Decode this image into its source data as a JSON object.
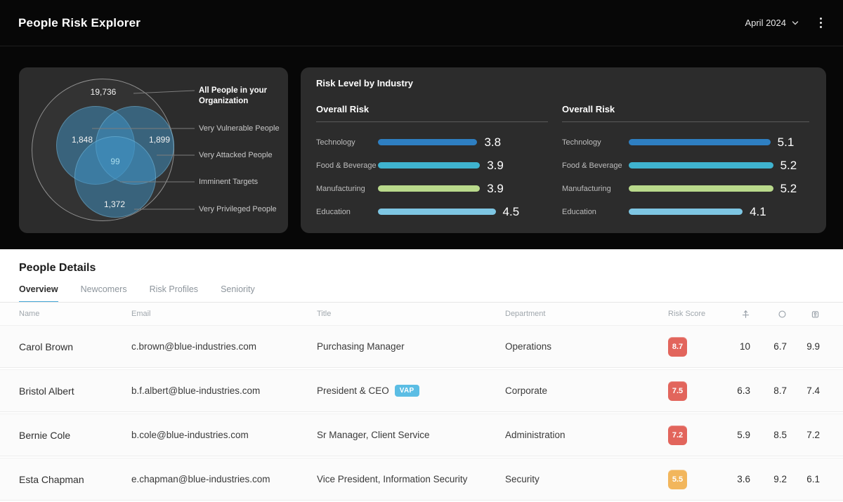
{
  "header": {
    "title": "People Risk Explorer",
    "period": "April 2024",
    "menu_icon": "kebab-menu-icon",
    "period_icon": "chevron-down-icon"
  },
  "venn": {
    "total_value": "19,736",
    "vulnerable_value": "1,848",
    "attacked_value": "1,899",
    "imminent_value": "99",
    "privileged_value": "1,372",
    "labels": {
      "total": "All People in your Organization",
      "vulnerable": "Very Vulnerable People",
      "attacked": "Very Attacked People",
      "imminent": "Imminent Targets",
      "privileged": "Very Privileged People"
    },
    "circle_color": "#4094c5"
  },
  "industry": {
    "title": "Risk Level by Industry",
    "columns": [
      {
        "heading": "Overall Risk",
        "rows": [
          {
            "label": "Technology",
            "value": "3.8",
            "color": "#2e7fc2"
          },
          {
            "label": "Food & Beverage",
            "value": "3.9",
            "color": "#3fb3cf"
          },
          {
            "label": "Manufacturing",
            "value": "3.9",
            "color": "#b9d98b"
          },
          {
            "label": "Education",
            "value": "4.5",
            "color": "#7ec6e3"
          }
        ]
      },
      {
        "heading": "Overall Risk",
        "rows": [
          {
            "label": "Technology",
            "value": "5.1",
            "color": "#2e7fc2"
          },
          {
            "label": "Food & Beverage",
            "value": "5.2",
            "color": "#3fb3cf"
          },
          {
            "label": "Manufacturing",
            "value": "5.2",
            "color": "#b9d98b"
          },
          {
            "label": "Education",
            "value": "4.1",
            "color": "#7ec6e3"
          }
        ]
      }
    ]
  },
  "people": {
    "title": "People Details",
    "tabs": [
      "Overview",
      "Newcomers",
      "Risk Profiles",
      "Seniority"
    ],
    "active_tab": "Overview",
    "table": {
      "headers": {
        "name": "Name",
        "email": "Email",
        "title": "Title",
        "department": "Department",
        "risk_score": "Risk Score",
        "icons": [
          "attack-index-icon",
          "vulnerability-icon",
          "privilege-icon"
        ]
      },
      "rows": [
        {
          "name": "Carol Brown",
          "email": "c.brown@blue-industries.com",
          "title": "Purchasing Manager",
          "tag": "",
          "department": "Operations",
          "score": "8.7",
          "score_color": "#e2655c",
          "attack": "10",
          "vulnerability": "6.7",
          "privilege": "9.9"
        },
        {
          "name": "Bristol Albert",
          "email": "b.f.albert@blue-industries.com",
          "title": "President & CEO",
          "tag": "VAP",
          "department": "Corporate",
          "score": "7.5",
          "score_color": "#e2655c",
          "attack": "6.3",
          "vulnerability": "8.7",
          "privilege": "7.4"
        },
        {
          "name": "Bernie Cole",
          "email": "b.cole@blue-industries.com",
          "title": "Sr Manager, Client Service",
          "tag": "",
          "department": "Administration",
          "score": "7.2",
          "score_color": "#e2655c",
          "attack": "5.9",
          "vulnerability": "8.5",
          "privilege": "7.2"
        },
        {
          "name": "Esta Chapman",
          "email": "e.chapman@blue-industries.com",
          "title": "Vice President, Information Security",
          "tag": "",
          "department": "Security",
          "score": "5.5",
          "score_color": "#f2b65c",
          "attack": "3.6",
          "vulnerability": "9.2",
          "privilege": "6.1"
        }
      ]
    }
  },
  "chart_data": [
    {
      "type": "bar",
      "title": "Risk Level by Industry — Overall Risk (left)",
      "categories": [
        "Technology",
        "Food & Beverage",
        "Manufacturing",
        "Education"
      ],
      "values": [
        3.8,
        3.9,
        3.9,
        4.5
      ],
      "xlabel": "",
      "ylabel": "Overall Risk",
      "ylim": [
        0,
        10
      ],
      "legend": false
    },
    {
      "type": "bar",
      "title": "Risk Level by Industry — Overall Risk (right)",
      "categories": [
        "Technology",
        "Food & Beverage",
        "Manufacturing",
        "Education"
      ],
      "values": [
        5.1,
        5.2,
        5.2,
        4.1
      ],
      "xlabel": "",
      "ylabel": "Overall Risk",
      "ylim": [
        0,
        10
      ],
      "legend": false
    },
    {
      "type": "pie",
      "title": "People sets (Venn)",
      "categories": [
        "All People in your Organization",
        "Very Vulnerable People",
        "Very Attacked People",
        "Imminent Targets",
        "Very Privileged People"
      ],
      "values": [
        19736,
        1848,
        1899,
        99,
        1372
      ]
    }
  ]
}
